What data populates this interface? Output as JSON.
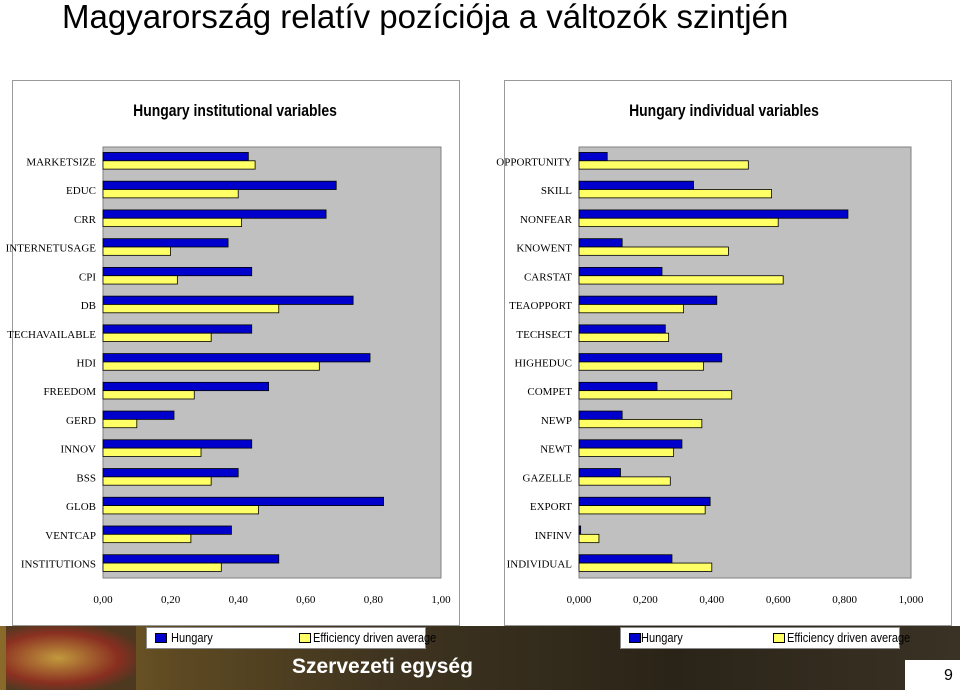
{
  "slide": {
    "title": "Magyarország relatív pozíciója a változók szintjén",
    "footer_unit": "Szervezeti egység",
    "page_number": "9"
  },
  "colors": {
    "hungary": "#0000cc",
    "efficiency": "#ffff66",
    "plot_background": "#c0c0c0"
  },
  "chart_data": [
    {
      "type": "bar",
      "orientation": "horizontal",
      "title": "Hungary institutional variables",
      "categories": [
        "MARKETSIZE",
        "EDUC",
        "CRR",
        "INTERNETUSAGE",
        "CPI",
        "DB",
        "TECHAVAILABLE",
        "HDI",
        "FREEDOM",
        "GERD",
        "INNOV",
        "BSS",
        "GLOB",
        "VENTCAP",
        "INSTITUTIONS"
      ],
      "series": [
        {
          "name": "Hungary",
          "values": [
            0.43,
            0.69,
            0.66,
            0.37,
            0.44,
            0.74,
            0.44,
            0.79,
            0.49,
            0.21,
            0.44,
            0.4,
            0.83,
            0.38,
            0.52
          ]
        },
        {
          "name": "Efficiency driven average",
          "values": [
            0.45,
            0.4,
            0.41,
            0.2,
            0.22,
            0.52,
            0.32,
            0.64,
            0.27,
            0.1,
            0.29,
            0.32,
            0.46,
            0.26,
            0.35
          ]
        }
      ],
      "xlim": [
        0,
        1
      ],
      "ticks": [
        "0,00",
        "0,20",
        "0,40",
        "0,60",
        "0,80",
        "1,00"
      ],
      "legend": "bottom",
      "grid": false
    },
    {
      "type": "bar",
      "orientation": "horizontal",
      "title": "Hungary individual variables",
      "categories": [
        "OPPORTUNITY",
        "SKILL",
        "NONFEAR",
        "KNOWENT",
        "CARSTAT",
        "TEAOPPORT",
        "TECHSECT",
        "HIGHEDUC",
        "COMPET",
        "NEWP",
        "NEWT",
        "GAZELLE",
        "EXPORT",
        "INFINV",
        "INDIVIDUAL"
      ],
      "series": [
        {
          "name": "Hungary",
          "values": [
            0.085,
            0.345,
            0.81,
            0.13,
            0.25,
            0.415,
            0.26,
            0.43,
            0.235,
            0.13,
            0.31,
            0.125,
            0.395,
            0.005,
            0.28
          ]
        },
        {
          "name": "Efficiency driven average",
          "values": [
            0.51,
            0.58,
            0.6,
            0.45,
            0.615,
            0.315,
            0.27,
            0.375,
            0.46,
            0.37,
            0.285,
            0.275,
            0.38,
            0.06,
            0.4
          ]
        }
      ],
      "xlim": [
        0,
        1
      ],
      "ticks": [
        "0,000",
        "0,200",
        "0,400",
        "0,600",
        "0,800",
        "1,000"
      ],
      "legend": "bottom",
      "grid": false
    }
  ]
}
